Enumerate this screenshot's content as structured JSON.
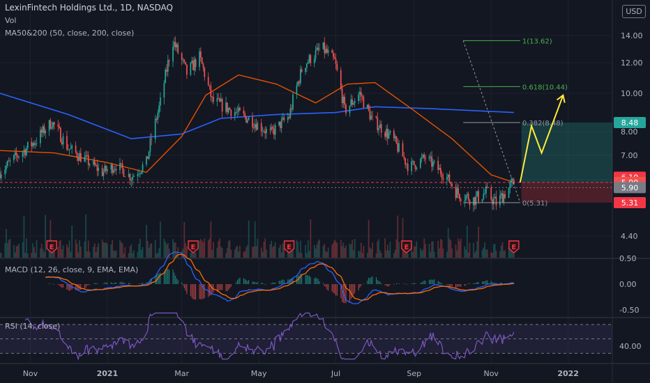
{
  "legend": {
    "title": "LexinFintech Holdings Ltd., 1D, NASDAQ",
    "vol": "Vol",
    "ma": "MA50&200 (50, close, 200, close)",
    "macd": "MACD (12, 26, close, 9, EMA, EMA)",
    "rsi": "RSI (14, close)"
  },
  "currency_button": "USD",
  "colors": {
    "background": "#131722",
    "up": "#26a69a",
    "down": "#ef5350",
    "ma50": "#e65100",
    "ma200": "#2962ff",
    "projection": "#ffeb3b",
    "fib": "#4caf50",
    "rsi": "#7e57c2"
  },
  "chart_data": {
    "type": "candlestick",
    "price_axis": {
      "ticks": [
        4.4,
        6.0,
        7.0,
        8.0,
        10.0,
        12.0,
        14.0
      ],
      "tick_labels": [
        "4.40",
        "6.00",
        "7.00",
        "8.00",
        "10.00",
        "12.00",
        "14.00"
      ]
    },
    "macd_axis": {
      "ticks": [
        0.5,
        0.0,
        -0.5
      ],
      "tick_labels": [
        "0.50",
        "0.00",
        "-0.50"
      ]
    },
    "rsi_axis": {
      "ticks": [
        40.0
      ],
      "tick_labels": [
        "40.00"
      ],
      "bands": [
        30,
        70
      ]
    },
    "x_labels": [
      {
        "date": "2020-11-01",
        "label": "Nov"
      },
      {
        "date": "2021-01-01",
        "label": "2021"
      },
      {
        "date": "2021-03-01",
        "label": "Mar"
      },
      {
        "date": "2021-05-01",
        "label": "May"
      },
      {
        "date": "2021-07-01",
        "label": "Jul"
      },
      {
        "date": "2021-09-01",
        "label": "Sep"
      },
      {
        "date": "2021-11-01",
        "label": "Nov"
      },
      {
        "date": "2022-01-01",
        "label": "2022"
      }
    ],
    "x_range": [
      "2020-10-08",
      "2022-02-05"
    ],
    "price_path": [
      [
        "2020-10-08",
        6.3
      ],
      [
        "2020-10-20",
        6.9
      ],
      [
        "2020-11-05",
        7.6
      ],
      [
        "2020-11-18",
        8.5
      ],
      [
        "2020-12-01",
        7.3
      ],
      [
        "2020-12-15",
        6.8
      ],
      [
        "2020-12-28",
        6.3
      ],
      [
        "2021-01-08",
        6.6
      ],
      [
        "2021-01-20",
        6.1
      ],
      [
        "2021-02-01",
        6.7
      ],
      [
        "2021-02-12",
        9.5
      ],
      [
        "2021-02-22",
        13.6
      ],
      [
        "2021-03-05",
        11.3
      ],
      [
        "2021-03-15",
        12.4
      ],
      [
        "2021-03-25",
        9.6
      ],
      [
        "2021-04-10",
        9.1
      ],
      [
        "2021-04-25",
        8.6
      ],
      [
        "2021-05-10",
        7.9
      ],
      [
        "2021-05-25",
        8.8
      ],
      [
        "2021-06-05",
        11.8
      ],
      [
        "2021-06-20",
        13.1
      ],
      [
        "2021-06-30",
        12.1
      ],
      [
        "2021-07-08",
        9.1
      ],
      [
        "2021-07-20",
        10.0
      ],
      [
        "2021-07-30",
        8.6
      ],
      [
        "2021-08-15",
        7.7
      ],
      [
        "2021-08-28",
        6.5
      ],
      [
        "2021-09-10",
        6.9
      ],
      [
        "2021-09-25",
        6.2
      ],
      [
        "2021-10-05",
        5.6
      ],
      [
        "2021-10-18",
        5.4
      ],
      [
        "2021-10-28",
        5.6
      ],
      [
        "2021-11-05",
        5.3
      ],
      [
        "2021-11-12",
        5.6
      ],
      [
        "2021-11-19",
        5.9
      ]
    ],
    "ma50": [
      [
        "2020-10-08",
        7.2
      ],
      [
        "2020-11-20",
        7.1
      ],
      [
        "2021-01-01",
        6.7
      ],
      [
        "2021-02-01",
        6.3
      ],
      [
        "2021-03-01",
        7.8
      ],
      [
        "2021-03-20",
        9.9
      ],
      [
        "2021-04-15",
        11.2
      ],
      [
        "2021-05-15",
        10.6
      ],
      [
        "2021-06-15",
        9.5
      ],
      [
        "2021-07-10",
        10.6
      ],
      [
        "2021-08-01",
        10.7
      ],
      [
        "2021-09-01",
        9.1
      ],
      [
        "2021-10-01",
        7.7
      ],
      [
        "2021-11-01",
        6.2
      ],
      [
        "2021-11-19",
        5.9
      ]
    ],
    "ma200": [
      [
        "2020-10-08",
        10.0
      ],
      [
        "2020-12-01",
        8.9
      ],
      [
        "2021-01-20",
        7.7
      ],
      [
        "2021-03-01",
        7.9
      ],
      [
        "2021-04-01",
        8.7
      ],
      [
        "2021-05-15",
        8.9
      ],
      [
        "2021-07-01",
        9.0
      ],
      [
        "2021-08-01",
        9.3
      ],
      [
        "2021-09-15",
        9.2
      ],
      [
        "2021-11-19",
        9.0
      ]
    ],
    "fibonacci": {
      "levels": [
        {
          "ratio": "1",
          "price": 13.62,
          "label": "1(13.62)"
        },
        {
          "ratio": "0.618",
          "price": 10.44,
          "label": "0.618(10.44)"
        },
        {
          "ratio": "0.382",
          "price": 8.48,
          "label": "0.382(8.48)"
        },
        {
          "ratio": "0",
          "price": 5.31,
          "label": "0(5.31)"
        }
      ],
      "from_date": "2021-11-01",
      "to_date": "2021-11-24"
    },
    "projection": [
      [
        "2021-11-24",
        5.9
      ],
      [
        "2021-12-03",
        8.3
      ],
      [
        "2021-12-11",
        7.1
      ],
      [
        "2021-12-28",
        9.9
      ]
    ],
    "position": {
      "entry": 5.9,
      "target": 8.48,
      "stop": 5.31,
      "from_date": "2021-11-25",
      "to_date": "2022-02-05"
    },
    "price_badges": [
      {
        "value": 8.48,
        "label": "8.48",
        "color": "#26a69a"
      },
      {
        "value": 6.1,
        "label": "6.10",
        "color": "#f23645"
      },
      {
        "value": 5.9,
        "label": "5.90",
        "color": "#ef5350"
      },
      {
        "value": 5.75,
        "label": "5.90",
        "color": "#787b86"
      },
      {
        "value": 5.31,
        "label": "5.31",
        "color": "#f23645"
      }
    ],
    "earnings": [
      "2020-11-18",
      "2021-03-10",
      "2021-05-25",
      "2021-08-26",
      "2021-11-19"
    ],
    "earnings_label": "E"
  }
}
